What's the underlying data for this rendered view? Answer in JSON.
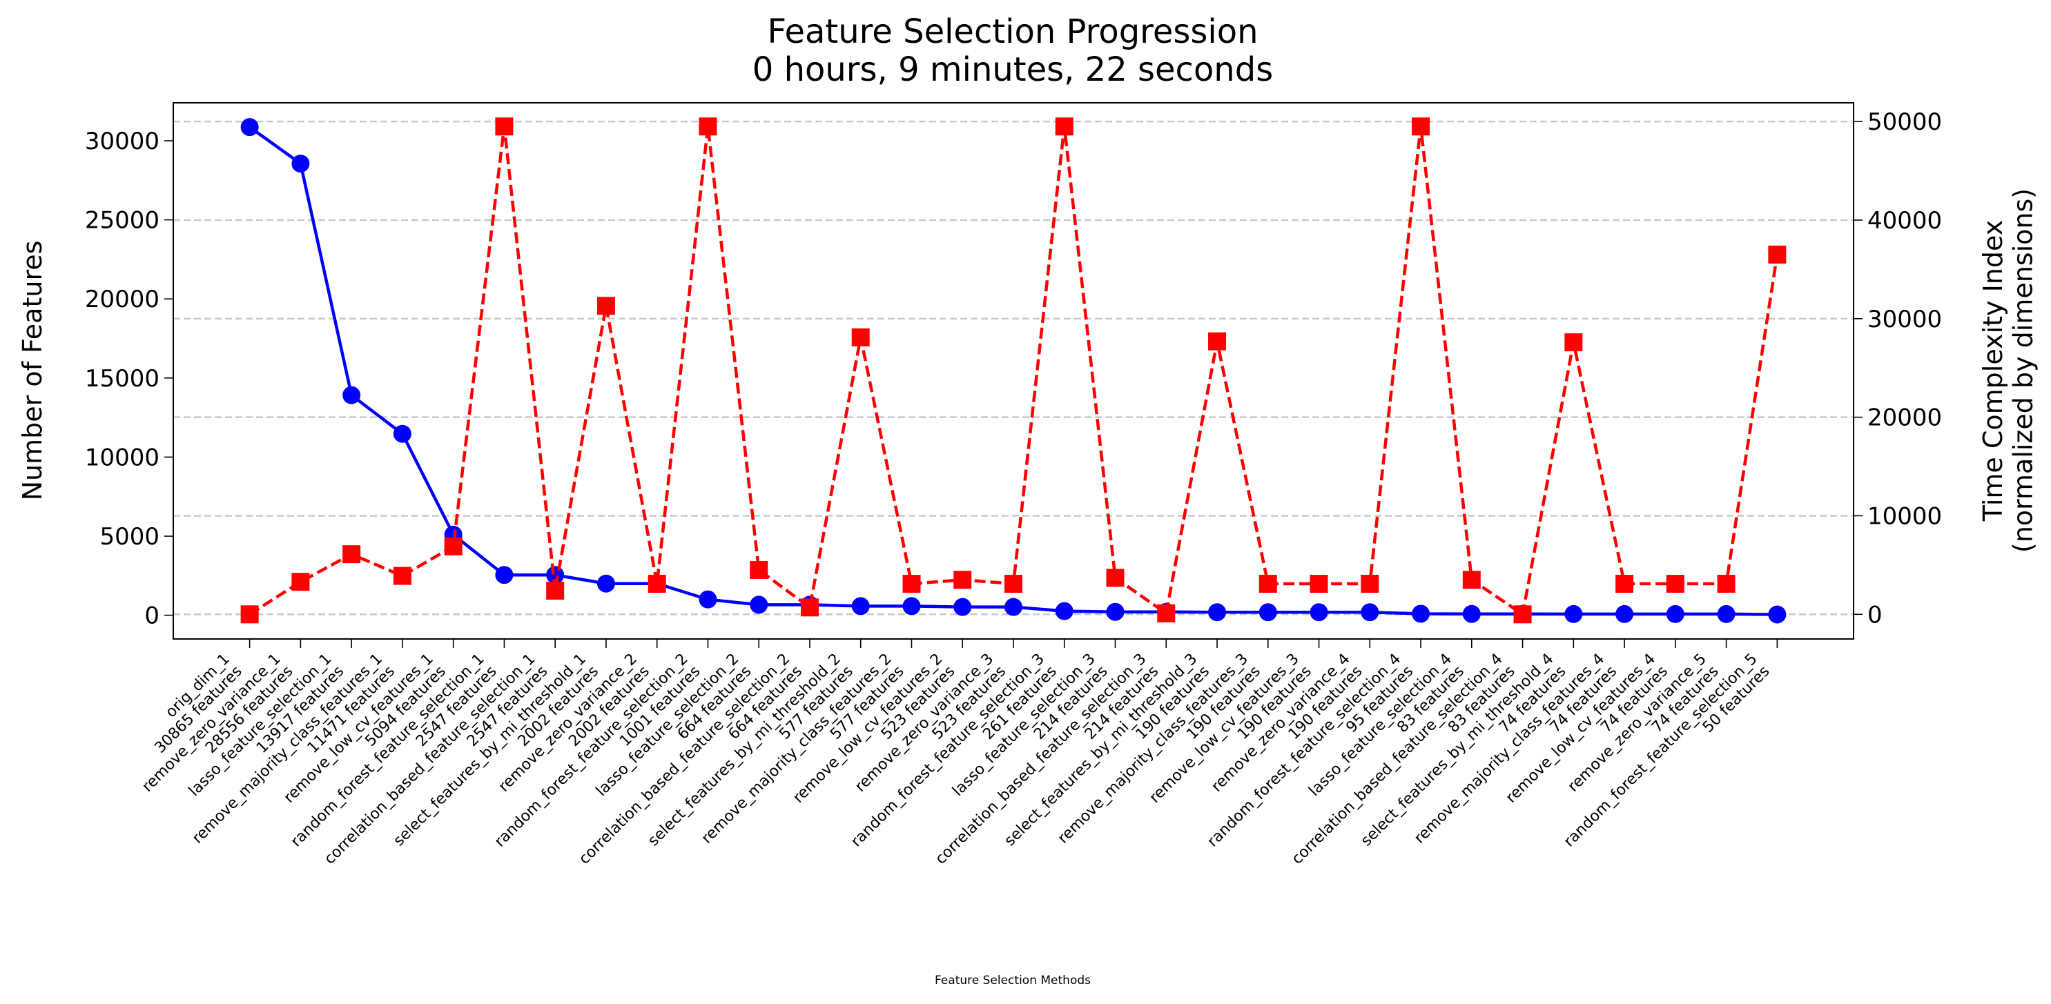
{
  "chart_data": {
    "type": "line",
    "title": "Feature Selection Progression\n0 hours, 9 minutes, 22 seconds",
    "xlabel": "Feature Selection Methods",
    "ylabel": "Number of Features",
    "y2label": "Time Complexity Index\n(normalized by dimensions)",
    "categories": [
      "orig_dim_1\n30865 features",
      "remove_zero_variance_1\n28556 features",
      "lasso_feature_selection_1\n13917 features",
      "remove_majority_class_features_1\n11471 features",
      "remove_low_cv_features_1\n5094 features",
      "random_forest_feature_selection_1\n2547 features",
      "correlation_based_feature_selection_1\n2547 features",
      "select_features_by_mi_threshold_1\n2002 features",
      "remove_zero_variance_2\n2002 features",
      "random_forest_feature_selection_2\n1001 features",
      "lasso_feature_selection_2\n664 features",
      "correlation_based_feature_selection_2\n664 features",
      "select_features_by_mi_threshold_2\n577 features",
      "remove_majority_class_features_2\n577 features",
      "remove_low_cv_features_2\n523 features",
      "remove_zero_variance_3\n523 features",
      "random_forest_feature_selection_3\n261 features",
      "lasso_feature_selection_3\n214 features",
      "correlation_based_feature_selection_3\n214 features",
      "select_features_by_mi_threshold_3\n190 features",
      "remove_majority_class_features_3\n190 features",
      "remove_low_cv_features_3\n190 features",
      "remove_zero_variance_4\n190 features",
      "random_forest_feature_selection_4\n95 features",
      "lasso_feature_selection_4\n83 features",
      "correlation_based_feature_selection_4\n83 features",
      "select_features_by_mi_threshold_4\n74 features",
      "remove_majority_class_features_4\n74 features",
      "remove_low_cv_features_4\n74 features",
      "remove_zero_variance_5\n74 features",
      "random_forest_feature_selection_5\n50 features"
    ],
    "series": [
      {
        "color": "#0000ff",
        "marker": "circle",
        "dashed": false,
        "values": [
          30865,
          28556,
          13917,
          11471,
          5094,
          2547,
          2547,
          2002,
          2002,
          1001,
          664,
          664,
          577,
          577,
          523,
          523,
          261,
          214,
          214,
          190,
          190,
          190,
          190,
          95,
          83,
          83,
          74,
          74,
          74,
          74,
          50
        ]
      },
      {
        "color": "#ff0000",
        "marker": "square",
        "dashed": true,
        "axis": "y2",
        "values": [
          0,
          3300,
          6100,
          3900,
          6900,
          49500,
          2400,
          31300,
          3100,
          49500,
          4500,
          700,
          28100,
          3100,
          3500,
          3100,
          49500,
          3700,
          100,
          27700,
          3100,
          3100,
          3100,
          49500,
          3500,
          0,
          27600,
          3100,
          3100,
          3100,
          36500
        ]
      }
    ],
    "ylim": [
      -1500,
      32400
    ],
    "yticks": [
      0,
      5000,
      10000,
      15000,
      20000,
      25000,
      30000
    ],
    "y2lim": [
      -2500,
      51900
    ],
    "y2ticks": [
      0,
      10000,
      20000,
      30000,
      40000,
      50000
    ],
    "grid": "y2",
    "ycolor": "#0000ff",
    "y2color": "#ff0000"
  }
}
